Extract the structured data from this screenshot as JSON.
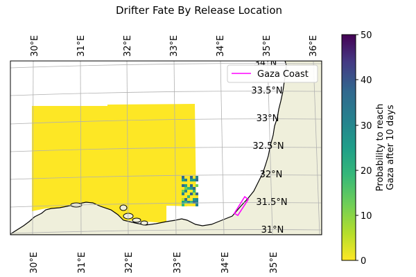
{
  "title": "Drifter Fate By Release Location",
  "map": {
    "top_lon_labels": [
      "30°E",
      "31°E",
      "32°E",
      "33°E",
      "34°E",
      "35°E",
      "36°E"
    ],
    "bottom_lon_labels": [
      "30°E",
      "31°E",
      "32°E",
      "33°E",
      "34°E",
      "35°E"
    ],
    "lat_labels": [
      "34°N",
      "33.5°N",
      "33°N",
      "32.5°N",
      "32°N",
      "31.5°N",
      "31°N"
    ],
    "land_color": "#efefdb",
    "field_color": "#fde725",
    "legend": {
      "label": "Gaza Coast",
      "color": "#ff00ff"
    }
  },
  "colorbar": {
    "label_line1": "Probability to reach",
    "label_line2": "Gaza after 10 days",
    "min": 0,
    "max": 50,
    "tick_labels": [
      "0",
      "10",
      "20",
      "30",
      "40",
      "50"
    ],
    "colormap": "viridis_r"
  }
}
